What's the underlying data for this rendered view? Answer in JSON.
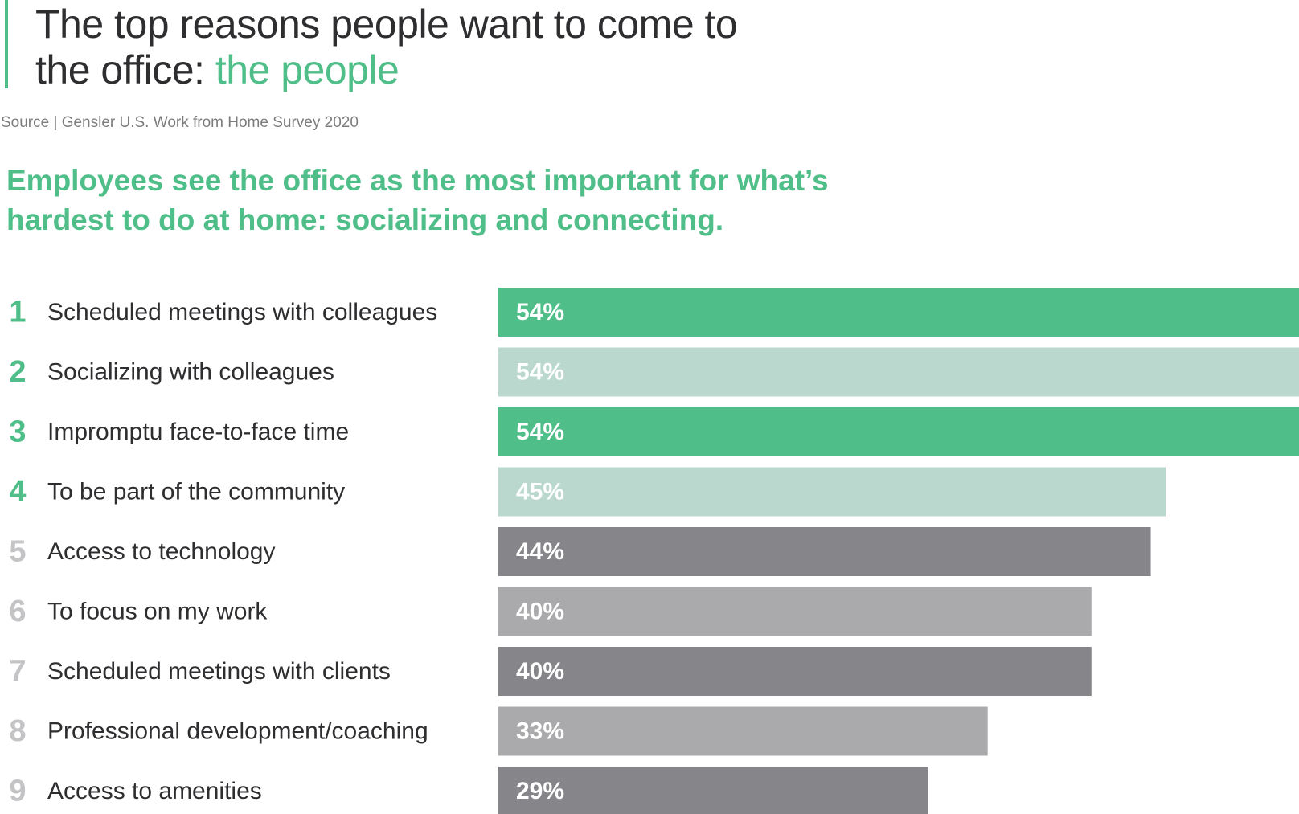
{
  "title": {
    "main": "The top reasons people want to come to the office:",
    "accent": "the people"
  },
  "source": "Source | Gensler U.S. Work from Home Survey 2020",
  "subtitle": "Employees see the office as the most important for what’s hardest to do at home: socializing and connecting.",
  "colors": {
    "green": "#4fbe88",
    "light_green": "#bad8cd",
    "dark_gray": "#86868a",
    "light_gray": "#aaaaac",
    "text": "#2e2e31",
    "rank_green": "#4fbe88",
    "rank_gray": "#c4c4c6"
  },
  "chart_data": {
    "type": "bar",
    "orientation": "horizontal",
    "categories": [
      "Scheduled meetings with colleagues",
      "Socializing with colleagues",
      "Impromptu face-to-face time",
      "To be part of the community",
      "Access to technology",
      "To focus on my work",
      "Scheduled meetings with clients",
      "Professional development/coaching",
      "Access to amenities"
    ],
    "ranks": [
      "1",
      "2",
      "3",
      "4",
      "5",
      "6",
      "7",
      "8",
      "9"
    ],
    "values": [
      54,
      54,
      54,
      45,
      44,
      40,
      40,
      33,
      29
    ],
    "value_labels": [
      "54%",
      "54%",
      "54%",
      "45%",
      "44%",
      "40%",
      "40%",
      "33%",
      "29%"
    ],
    "bar_colors": [
      "#4fbe88",
      "#bad8cd",
      "#4fbe88",
      "#bad8cd",
      "#86868a",
      "#aaaaac",
      "#86868a",
      "#aaaaac",
      "#86868a"
    ],
    "rank_colors": [
      "#4fbe88",
      "#4fbe88",
      "#4fbe88",
      "#4fbe88",
      "#c4c4c6",
      "#c4c4c6",
      "#c4c4c6",
      "#c4c4c6",
      "#c4c4c6"
    ],
    "xlim": [
      0,
      54
    ],
    "grid": false,
    "legend": "none"
  }
}
